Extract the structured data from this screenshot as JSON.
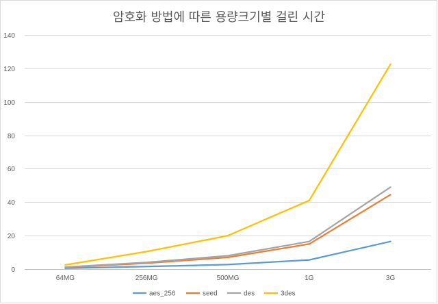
{
  "chart_data": {
    "type": "line",
    "title": "암호화 방법에 따른 용량크기별 걸린 시간",
    "xlabel": "",
    "ylabel": "",
    "categories": [
      "64MG",
      "256MG",
      "500MG",
      "1G",
      "3G"
    ],
    "ylim": [
      0,
      140
    ],
    "yticks": [
      0,
      20,
      40,
      60,
      80,
      100,
      120,
      140
    ],
    "grid": true,
    "legend": "bottom",
    "series": [
      {
        "name": "aes_256",
        "color": "#5b9bd5",
        "values": [
          0.5,
          1.5,
          2.7,
          5.5,
          16.5
        ]
      },
      {
        "name": "seed",
        "color": "#ed7d31",
        "values": [
          1.0,
          3.5,
          7.0,
          15.0,
          44.5
        ]
      },
      {
        "name": "des",
        "color": "#a5a5a5",
        "values": [
          1.2,
          4.0,
          8.0,
          16.5,
          49.0
        ]
      },
      {
        "name": "3des",
        "color": "#ffc000",
        "values": [
          2.5,
          10.5,
          20.0,
          41.0,
          122.5
        ]
      }
    ]
  }
}
